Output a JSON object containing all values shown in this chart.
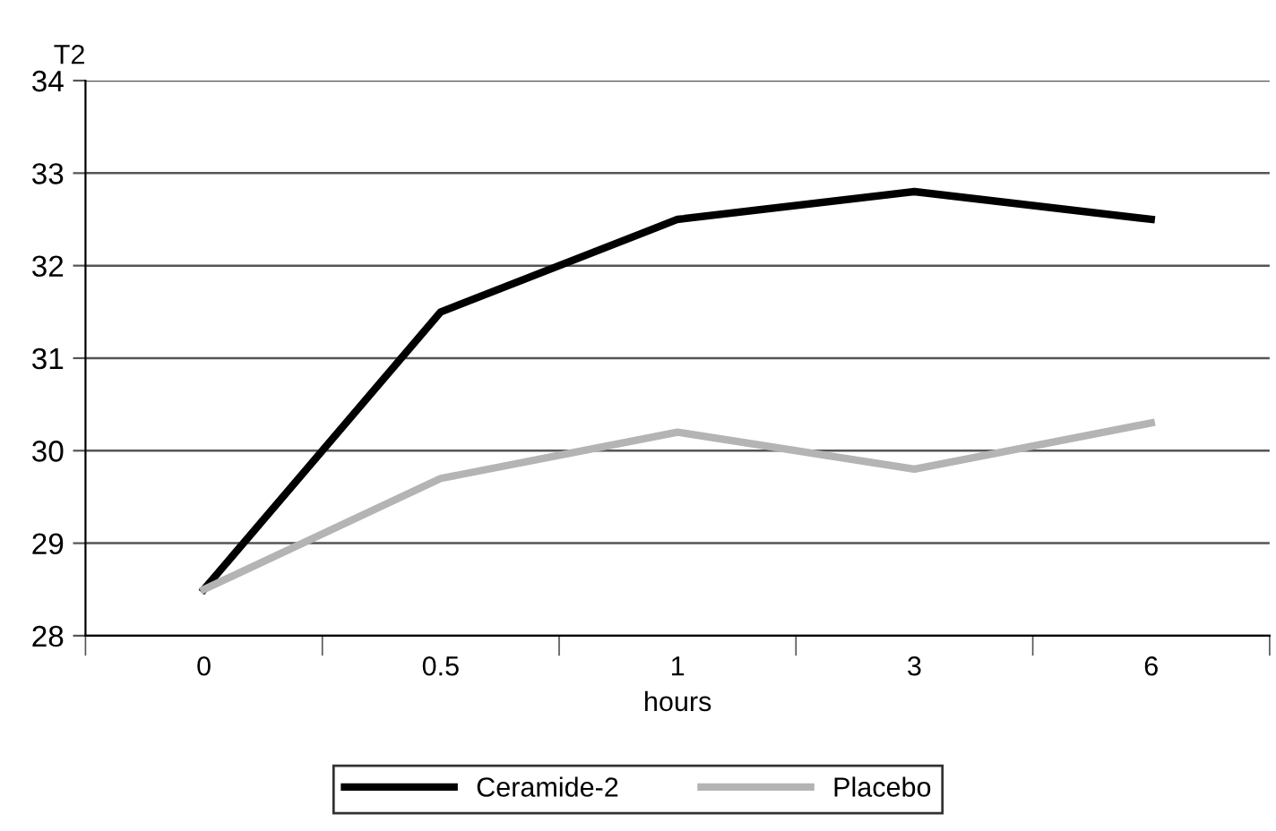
{
  "chart_data": {
    "type": "line",
    "ylabel": "T2",
    "xlabel": "hours",
    "categories": [
      "0",
      "0.5",
      "1",
      "3",
      "6"
    ],
    "series": [
      {
        "name": "Ceramide-2",
        "color": "#000000",
        "values": [
          28.5,
          31.5,
          32.5,
          32.8,
          32.5
        ]
      },
      {
        "name": "Placebo",
        "color": "#b4b4b4",
        "values": [
          28.5,
          29.7,
          30.2,
          29.8,
          30.3
        ]
      }
    ],
    "ylim": [
      28,
      34
    ],
    "yticks": [
      28,
      29,
      30,
      31,
      32,
      33,
      34
    ],
    "grid": "y",
    "legend": "bottom",
    "marker": "none",
    "line_style": "solid"
  }
}
